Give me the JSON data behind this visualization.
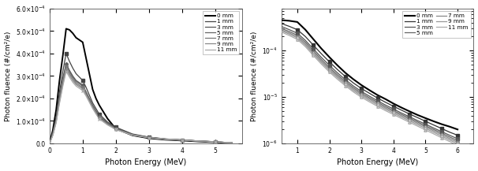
{
  "left_xlabel": "Photon Energy (MeV)",
  "left_ylabel": "Photon fluence (#/cm²/e)",
  "right_xlabel": "Photon Energy (MeV)",
  "right_ylabel": "Photon fluence (#/cm²/e)",
  "left_xlim": [
    0,
    5.8
  ],
  "left_ylim": [
    0,
    0.0006
  ],
  "right_xlim": [
    0.5,
    6.5
  ],
  "right_ylim": [
    1e-06,
    0.0008
  ],
  "left_yticks": [
    0,
    0.0001,
    0.0002,
    0.0003,
    0.0004,
    0.0005,
    0.0006
  ],
  "left_xticks": [
    0,
    1,
    2,
    3,
    4,
    5
  ],
  "right_xticks": [
    1,
    2,
    3,
    4,
    5,
    6
  ],
  "left_series": {
    "0 mm": {
      "x": [
        0,
        0.1,
        0.2,
        0.3,
        0.4,
        0.5,
        0.6,
        0.7,
        0.8,
        0.9,
        1.0,
        1.1,
        1.2,
        1.3,
        1.4,
        1.5,
        1.75,
        2.0,
        2.5,
        3.0,
        3.5,
        4.0,
        4.5,
        5.0,
        5.5
      ],
      "y": [
        0,
        6e-05,
        0.00015,
        0.00028,
        0.00039,
        0.00051,
        0.000505,
        0.00049,
        0.00047,
        0.00046,
        0.00045,
        0.00038,
        0.00031,
        0.00024,
        0.0002,
        0.00017,
        0.00011,
        6.5e-05,
        3.6e-05,
        2.3e-05,
        1.65e-05,
        1.3e-05,
        8.5e-06,
        5.5e-06,
        1.5e-06
      ],
      "color": "#000000",
      "lw": 1.4,
      "marker": "none"
    },
    "1 mm": {
      "x": [
        0,
        0.1,
        0.2,
        0.3,
        0.4,
        0.5,
        0.6,
        0.7,
        0.8,
        0.9,
        1.0,
        1.1,
        1.2,
        1.3,
        1.4,
        1.5,
        1.75,
        2.0,
        2.5,
        3.0,
        3.5,
        4.0,
        4.5,
        5.0,
        5.5
      ],
      "y": [
        0,
        5e-05,
        0.00012,
        0.00023,
        0.00032,
        0.0004,
        0.000365,
        0.000335,
        0.00031,
        0.000295,
        0.00028,
        0.00025,
        0.000215,
        0.00018,
        0.000155,
        0.00013,
        9.5e-05,
        7.2e-05,
        4.2e-05,
        2.8e-05,
        2e-05,
        1.55e-05,
        1.1e-05,
        7e-06,
        2.5e-06
      ],
      "color": "#444444",
      "lw": 0.9,
      "marker": "s"
    },
    "3 mm": {
      "x": [
        0,
        0.1,
        0.2,
        0.3,
        0.4,
        0.5,
        0.6,
        0.7,
        0.8,
        0.9,
        1.0,
        1.1,
        1.2,
        1.3,
        1.4,
        1.5,
        1.75,
        2.0,
        2.5,
        3.0,
        3.5,
        4.0,
        4.5,
        5.0,
        5.5
      ],
      "y": [
        0,
        4.5e-05,
        0.00011,
        0.00021,
        0.00029,
        0.000355,
        0.000325,
        0.0003,
        0.00028,
        0.00027,
        0.00026,
        0.00023,
        0.0002,
        0.00017,
        0.000145,
        0.000122,
        9e-05,
        6.8e-05,
        4e-05,
        2.7e-05,
        1.95e-05,
        1.55e-05,
        1.1e-05,
        7.5e-06,
        2.6e-06
      ],
      "color": "#555555",
      "lw": 0.9,
      "marker": "D"
    },
    "5 mm": {
      "x": [
        0,
        0.1,
        0.2,
        0.3,
        0.4,
        0.5,
        0.6,
        0.7,
        0.8,
        0.9,
        1.0,
        1.1,
        1.2,
        1.3,
        1.4,
        1.5,
        1.75,
        2.0,
        2.5,
        3.0,
        3.5,
        4.0,
        4.5,
        5.0,
        5.5
      ],
      "y": [
        0,
        4.2e-05,
        0.000105,
        0.0002,
        0.00028,
        0.00035,
        0.00032,
        0.000295,
        0.000275,
        0.000265,
        0.000255,
        0.000227,
        0.000197,
        0.000167,
        0.000142,
        0.000118,
        8.8e-05,
        6.6e-05,
        3.9e-05,
        2.65e-05,
        1.9e-05,
        1.55e-05,
        1.1e-05,
        7.5e-06,
        2.8e-06
      ],
      "color": "#666666",
      "lw": 0.9,
      "marker": "^"
    },
    "7 mm": {
      "x": [
        0,
        0.1,
        0.2,
        0.3,
        0.4,
        0.5,
        0.6,
        0.7,
        0.8,
        0.9,
        1.0,
        1.1,
        1.2,
        1.3,
        1.4,
        1.5,
        1.75,
        2.0,
        2.5,
        3.0,
        3.5,
        4.0,
        4.5,
        5.0,
        5.5
      ],
      "y": [
        0,
        4e-05,
        0.0001,
        0.000192,
        0.00027,
        0.00034,
        0.000312,
        0.000288,
        0.000268,
        0.000258,
        0.000248,
        0.000222,
        0.000193,
        0.000163,
        0.000138,
        0.000115,
        8.6e-05,
        6.45e-05,
        3.8e-05,
        2.6e-05,
        1.88e-05,
        1.5e-05,
        1.08e-05,
        7.3e-06,
        2.8e-06
      ],
      "color": "#777777",
      "lw": 0.9,
      "marker": "v"
    },
    "9 mm": {
      "x": [
        0,
        0.1,
        0.2,
        0.3,
        0.4,
        0.5,
        0.6,
        0.7,
        0.8,
        0.9,
        1.0,
        1.1,
        1.2,
        1.3,
        1.4,
        1.5,
        1.75,
        2.0,
        2.5,
        3.0,
        3.5,
        4.0,
        4.5,
        5.0,
        5.5
      ],
      "y": [
        0,
        3.8e-05,
        9.6e-05,
        0.000185,
        0.000262,
        0.00033,
        0.000304,
        0.00028,
        0.000262,
        0.000252,
        0.000242,
        0.000217,
        0.000188,
        0.000159,
        0.000135,
        0.000112,
        8.4e-05,
        6.3e-05,
        3.75e-05,
        2.55e-05,
        1.85e-05,
        1.48e-05,
        1.06e-05,
        7.2e-06,
        2.8e-06
      ],
      "color": "#888888",
      "lw": 0.9,
      "marker": "o"
    },
    "11 mm": {
      "x": [
        0,
        0.1,
        0.2,
        0.3,
        0.4,
        0.5,
        0.6,
        0.7,
        0.8,
        0.9,
        1.0,
        1.1,
        1.2,
        1.3,
        1.4,
        1.5,
        1.75,
        2.0,
        2.5,
        3.0,
        3.5,
        4.0,
        4.5,
        5.0,
        5.5
      ],
      "y": [
        0,
        3.6e-05,
        9.2e-05,
        0.000178,
        0.000254,
        0.00032,
        0.000295,
        0.000272,
        0.000255,
        0.000245,
        0.000235,
        0.000211,
        0.000183,
        0.000155,
        0.000131,
        0.000109,
        8.2e-05,
        6.15e-05,
        3.7e-05,
        2.5e-05,
        1.82e-05,
        1.45e-05,
        1.04e-05,
        7e-06,
        2.8e-06
      ],
      "color": "#aaaaaa",
      "lw": 0.9,
      "marker": "x"
    }
  },
  "right_series": {
    "0 mm": {
      "x": [
        0.5,
        0.75,
        1.0,
        1.25,
        1.5,
        1.75,
        2.0,
        2.25,
        2.5,
        2.75,
        3.0,
        3.25,
        3.5,
        3.75,
        4.0,
        4.25,
        4.5,
        4.75,
        5.0,
        5.25,
        5.5,
        5.75,
        6.0
      ],
      "y": [
        0.00045,
        0.000435,
        0.00041,
        0.00028,
        0.000175,
        0.00011,
        7.2e-05,
        4.8e-05,
        3.3e-05,
        2.4e-05,
        1.8e-05,
        1.4e-05,
        1.1e-05,
        9e-06,
        7.2e-06,
        5.9e-06,
        4.9e-06,
        4.1e-06,
        3.5e-06,
        3e-06,
        2.6e-06,
        2.3e-06,
        2e-06
      ],
      "color": "#000000",
      "lw": 1.5,
      "marker": "none"
    },
    "1 mm": {
      "x": [
        0.5,
        0.75,
        1.0,
        1.25,
        1.5,
        1.75,
        2.0,
        2.25,
        2.5,
        2.75,
        3.0,
        3.25,
        3.5,
        3.75,
        4.0,
        4.25,
        4.5,
        4.75,
        5.0,
        5.25,
        5.5,
        5.75,
        6.0
      ],
      "y": [
        0.00038,
        0.00033,
        0.00028,
        0.0002,
        0.00013,
        8.5e-05,
        5.7e-05,
        3.9e-05,
        2.75e-05,
        2e-05,
        1.52e-05,
        1.2e-05,
        9.5e-06,
        7.7e-06,
        6.3e-06,
        5.2e-06,
        4.3e-06,
        3.6e-06,
        3e-06,
        2.5e-06,
        2.1e-06,
        1.75e-06,
        1.5e-06
      ],
      "color": "#333333",
      "lw": 0.9,
      "marker": "s"
    },
    "3 mm": {
      "x": [
        0.5,
        0.75,
        1.0,
        1.25,
        1.5,
        1.75,
        2.0,
        2.25,
        2.5,
        2.75,
        3.0,
        3.25,
        3.5,
        3.75,
        4.0,
        4.25,
        4.5,
        4.75,
        5.0,
        5.25,
        5.5,
        5.75,
        6.0
      ],
      "y": [
        0.00033,
        0.00028,
        0.000235,
        0.000165,
        0.000108,
        7.1e-05,
        4.8e-05,
        3.3e-05,
        2.35e-05,
        1.72e-05,
        1.31e-05,
        1.04e-05,
        8.3e-06,
        6.7e-06,
        5.5e-06,
        4.5e-06,
        3.75e-06,
        3.1e-06,
        2.6e-06,
        2.15e-06,
        1.8e-06,
        1.5e-06,
        1.26e-06
      ],
      "color": "#555555",
      "lw": 0.9,
      "marker": "s"
    },
    "5 mm": {
      "x": [
        0.5,
        0.75,
        1.0,
        1.25,
        1.5,
        1.75,
        2.0,
        2.25,
        2.5,
        2.75,
        3.0,
        3.25,
        3.5,
        3.75,
        4.0,
        4.25,
        4.5,
        4.75,
        5.0,
        5.25,
        5.5,
        5.75,
        6.0
      ],
      "y": [
        0.0003,
        0.000255,
        0.000213,
        0.00015,
        9.8e-05,
        6.4e-05,
        4.3e-05,
        3e-05,
        2.15e-05,
        1.58e-05,
        1.21e-05,
        9.6e-06,
        7.7e-06,
        6.2e-06,
        5.1e-06,
        4.2e-06,
        3.5e-06,
        2.9e-06,
        2.4e-06,
        2e-06,
        1.67e-06,
        1.38e-06,
        1.15e-06
      ],
      "color": "#666666",
      "lw": 0.9,
      "marker": "^"
    },
    "7 mm": {
      "x": [
        0.5,
        0.75,
        1.0,
        1.25,
        1.5,
        1.75,
        2.0,
        2.25,
        2.5,
        2.75,
        3.0,
        3.25,
        3.5,
        3.75,
        4.0,
        4.25,
        4.5,
        4.75,
        5.0,
        5.25,
        5.5,
        5.75,
        6.0
      ],
      "y": [
        0.00028,
        0.000238,
        0.000198,
        0.000138,
        9e-05,
        5.9e-05,
        4e-05,
        2.78e-05,
        2e-05,
        1.47e-05,
        1.13e-05,
        9e-06,
        7.2e-06,
        5.8e-06,
        4.8e-06,
        3.95e-06,
        3.28e-06,
        2.72e-06,
        2.26e-06,
        1.87e-06,
        1.55e-06,
        1.28e-06,
        1.06e-06
      ],
      "color": "#888888",
      "lw": 0.9,
      "marker": "o",
      "mfc": "white"
    },
    "9 mm": {
      "x": [
        0.5,
        0.75,
        1.0,
        1.25,
        1.5,
        1.75,
        2.0,
        2.25,
        2.5,
        2.75,
        3.0,
        3.25,
        3.5,
        3.75,
        4.0,
        4.25,
        4.5,
        4.75,
        5.0,
        5.25,
        5.5,
        5.75,
        6.0
      ],
      "y": [
        0.000265,
        0.000225,
        0.000186,
        0.00013,
        8.4e-05,
        5.5e-05,
        3.7e-05,
        2.6e-05,
        1.87e-05,
        1.37e-05,
        1.06e-05,
        8.4e-06,
        6.75e-06,
        5.45e-06,
        4.5e-06,
        3.7e-06,
        3.07e-06,
        2.54e-06,
        2.11e-06,
        1.74e-06,
        1.44e-06,
        1.19e-06,
        9.8e-07
      ],
      "color": "#999999",
      "lw": 0.9,
      "marker": "o",
      "mfc": "white"
    },
    "11 mm": {
      "x": [
        0.5,
        0.75,
        1.0,
        1.25,
        1.5,
        1.75,
        2.0,
        2.25,
        2.5,
        2.75,
        3.0,
        3.25,
        3.5,
        3.75,
        4.0,
        4.25,
        4.5,
        4.75,
        5.0,
        5.25,
        5.5,
        5.75,
        6.0
      ],
      "y": [
        0.00025,
        0.00021,
        0.000173,
        0.000121,
        7.8e-05,
        5.1e-05,
        3.44e-05,
        2.41e-05,
        1.74e-05,
        1.28e-05,
        9.85e-06,
        7.84e-06,
        6.29e-06,
        5.08e-06,
        4.19e-06,
        3.45e-06,
        2.86e-06,
        2.36e-06,
        1.95e-06,
        1.61e-06,
        1.33e-06,
        1.1e-06,
        9e-07
      ],
      "color": "#aaaaaa",
      "lw": 0.9,
      "marker": "^",
      "mfc": "white"
    }
  }
}
